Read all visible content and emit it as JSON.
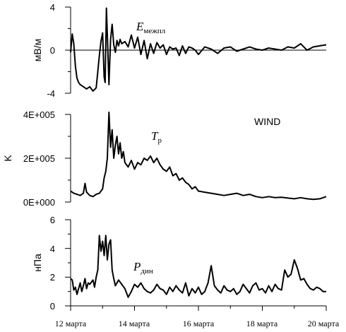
{
  "chart_data": [
    {
      "type": "line",
      "ylabel": "мВ/м",
      "yticks": [
        "4",
        "0",
        "-4"
      ],
      "ylim": [
        -4,
        4
      ],
      "xlim": [
        12,
        20
      ],
      "zero_line": true,
      "annotation": {
        "main": "E",
        "sub": "межпл"
      },
      "series": [
        {
          "x": [
            12.0,
            12.05,
            12.1,
            12.15,
            12.2,
            12.25,
            12.3,
            12.4,
            12.5,
            12.6,
            12.7,
            12.8,
            12.85,
            12.9,
            12.95,
            13.0,
            13.05,
            13.08,
            13.12,
            13.16,
            13.2,
            13.25,
            13.3,
            13.35,
            13.4,
            13.45,
            13.5,
            13.55,
            13.6,
            13.7,
            13.8,
            13.9,
            14.0,
            14.1,
            14.2,
            14.3,
            14.4,
            14.5,
            14.6,
            14.7,
            14.8,
            14.9,
            15.0,
            15.1,
            15.2,
            15.3,
            15.4,
            15.5,
            15.6,
            15.7,
            15.8,
            15.9,
            16.0,
            16.2,
            16.4,
            16.6,
            16.8,
            17.0,
            17.2,
            17.4,
            17.6,
            17.8,
            18.0,
            18.2,
            18.4,
            18.6,
            18.8,
            19.0,
            19.2,
            19.4,
            19.6,
            19.8,
            20.0
          ],
          "values": [
            -0.2,
            1.5,
            0.6,
            -1.5,
            -2.6,
            -3.0,
            -3.2,
            -3.4,
            -3.6,
            -3.4,
            -3.8,
            -3.5,
            -2.0,
            -0.5,
            0.8,
            1.6,
            -2.5,
            -3.0,
            3.9,
            0.5,
            -3.2,
            1.0,
            2.4,
            0.5,
            -0.2,
            0.9,
            0.4,
            1.0,
            0.6,
            0.8,
            0.3,
            1.4,
            0.2,
            1.2,
            -0.4,
            0.9,
            -0.8,
            0.6,
            -0.3,
            0.7,
            0.2,
            0.5,
            -0.4,
            0.3,
            0.1,
            0.2,
            -0.5,
            0.4,
            -0.3,
            0.3,
            0.2,
            0.0,
            -0.4,
            0.3,
            0.1,
            -0.3,
            0.2,
            0.3,
            -0.1,
            0.1,
            0.3,
            0.1,
            0.0,
            0.2,
            0.1,
            0.0,
            0.3,
            0.2,
            0.6,
            0.0,
            0.3,
            0.4,
            0.5
          ]
        }
      ]
    },
    {
      "type": "line",
      "ylabel": "K",
      "yticks": [
        "4E+005",
        "2E+005",
        "0E+000"
      ],
      "ylim": [
        0,
        400000
      ],
      "xlim": [
        12,
        20
      ],
      "annotation": {
        "main": "T",
        "sub": "p"
      },
      "legend_text": "WIND",
      "series": [
        {
          "x": [
            12.0,
            12.1,
            12.2,
            12.3,
            12.4,
            12.45,
            12.5,
            12.6,
            12.7,
            12.8,
            12.9,
            13.0,
            13.05,
            13.1,
            13.15,
            13.2,
            13.25,
            13.3,
            13.35,
            13.4,
            13.45,
            13.5,
            13.55,
            13.6,
            13.65,
            13.7,
            13.8,
            13.9,
            14.0,
            14.1,
            14.2,
            14.3,
            14.4,
            14.5,
            14.6,
            14.7,
            14.8,
            14.9,
            15.0,
            15.1,
            15.2,
            15.3,
            15.4,
            15.5,
            15.6,
            15.7,
            15.8,
            15.9,
            16.0,
            16.2,
            16.4,
            16.6,
            16.8,
            17.0,
            17.2,
            17.4,
            17.6,
            17.8,
            18.0,
            18.2,
            18.4,
            18.6,
            18.8,
            19.0,
            19.2,
            19.4,
            19.6,
            19.8,
            20.0
          ],
          "values": [
            50000,
            40000,
            35000,
            30000,
            40000,
            85000,
            45000,
            30000,
            25000,
            35000,
            40000,
            60000,
            110000,
            140000,
            200000,
            410000,
            250000,
            330000,
            200000,
            260000,
            300000,
            220000,
            270000,
            200000,
            230000,
            180000,
            160000,
            190000,
            150000,
            180000,
            170000,
            200000,
            190000,
            210000,
            180000,
            200000,
            170000,
            150000,
            140000,
            160000,
            120000,
            130000,
            100000,
            110000,
            90000,
            80000,
            60000,
            70000,
            50000,
            45000,
            40000,
            35000,
            30000,
            35000,
            40000,
            30000,
            35000,
            25000,
            20000,
            25000,
            20000,
            22000,
            18000,
            15000,
            20000,
            15000,
            12000,
            15000,
            25000
          ]
        }
      ]
    },
    {
      "type": "line",
      "ylabel": "нПа",
      "yticks": [
        "6",
        "4",
        "2",
        "0"
      ],
      "ylim": [
        0,
        6
      ],
      "xlim": [
        12,
        20
      ],
      "annotation": {
        "main": "P",
        "sub": "дин"
      },
      "series": [
        {
          "x": [
            12.0,
            12.05,
            12.1,
            12.15,
            12.2,
            12.25,
            12.3,
            12.35,
            12.4,
            12.45,
            12.5,
            12.55,
            12.6,
            12.7,
            12.75,
            12.8,
            12.85,
            12.9,
            12.95,
            13.0,
            13.05,
            13.1,
            13.15,
            13.2,
            13.25,
            13.3,
            13.35,
            13.4,
            13.5,
            13.6,
            13.7,
            13.8,
            13.9,
            14.0,
            14.1,
            14.2,
            14.3,
            14.4,
            14.5,
            14.6,
            14.7,
            14.8,
            14.9,
            15.0,
            15.1,
            15.2,
            15.3,
            15.4,
            15.5,
            15.6,
            15.7,
            15.8,
            15.9,
            16.0,
            16.1,
            16.2,
            16.3,
            16.4,
            16.5,
            16.6,
            16.7,
            16.8,
            16.9,
            17.0,
            17.1,
            17.2,
            17.3,
            17.4,
            17.5,
            17.6,
            17.7,
            17.8,
            17.9,
            18.0,
            18.1,
            18.2,
            18.3,
            18.4,
            18.5,
            18.6,
            18.7,
            18.8,
            18.9,
            19.0,
            19.1,
            19.2,
            19.3,
            19.4,
            19.5,
            19.6,
            19.7,
            19.8,
            19.9,
            20.0
          ],
          "values": [
            1.9,
            1.8,
            1.1,
            1.3,
            0.8,
            1.2,
            1.6,
            1.0,
            1.4,
            1.9,
            1.2,
            1.6,
            1.5,
            1.8,
            1.3,
            2.0,
            2.5,
            4.9,
            3.8,
            4.5,
            3.5,
            4.9,
            3.2,
            4.3,
            4.6,
            2.5,
            1.9,
            1.4,
            1.8,
            1.5,
            1.2,
            0.6,
            1.0,
            1.5,
            1.3,
            1.6,
            1.2,
            1.0,
            0.9,
            1.1,
            1.5,
            1.2,
            1.1,
            0.8,
            1.3,
            1.0,
            1.4,
            1.1,
            0.9,
            1.6,
            0.7,
            1.2,
            0.9,
            1.3,
            0.8,
            1.0,
            1.6,
            2.8,
            1.4,
            1.1,
            0.9,
            1.4,
            1.1,
            1.0,
            1.2,
            0.8,
            1.0,
            1.5,
            1.2,
            0.9,
            1.4,
            1.6,
            1.1,
            1.2,
            0.9,
            1.4,
            1.0,
            1.5,
            1.2,
            1.1,
            2.5,
            2.0,
            2.2,
            3.2,
            2.6,
            1.8,
            1.9,
            1.5,
            1.2,
            1.1,
            1.3,
            1.2,
            1.0,
            1.0
          ]
        }
      ]
    }
  ],
  "x_tick_labels": [
    "12 марта",
    "14 марта",
    "16 марта",
    "18 марта",
    "20 марта"
  ]
}
